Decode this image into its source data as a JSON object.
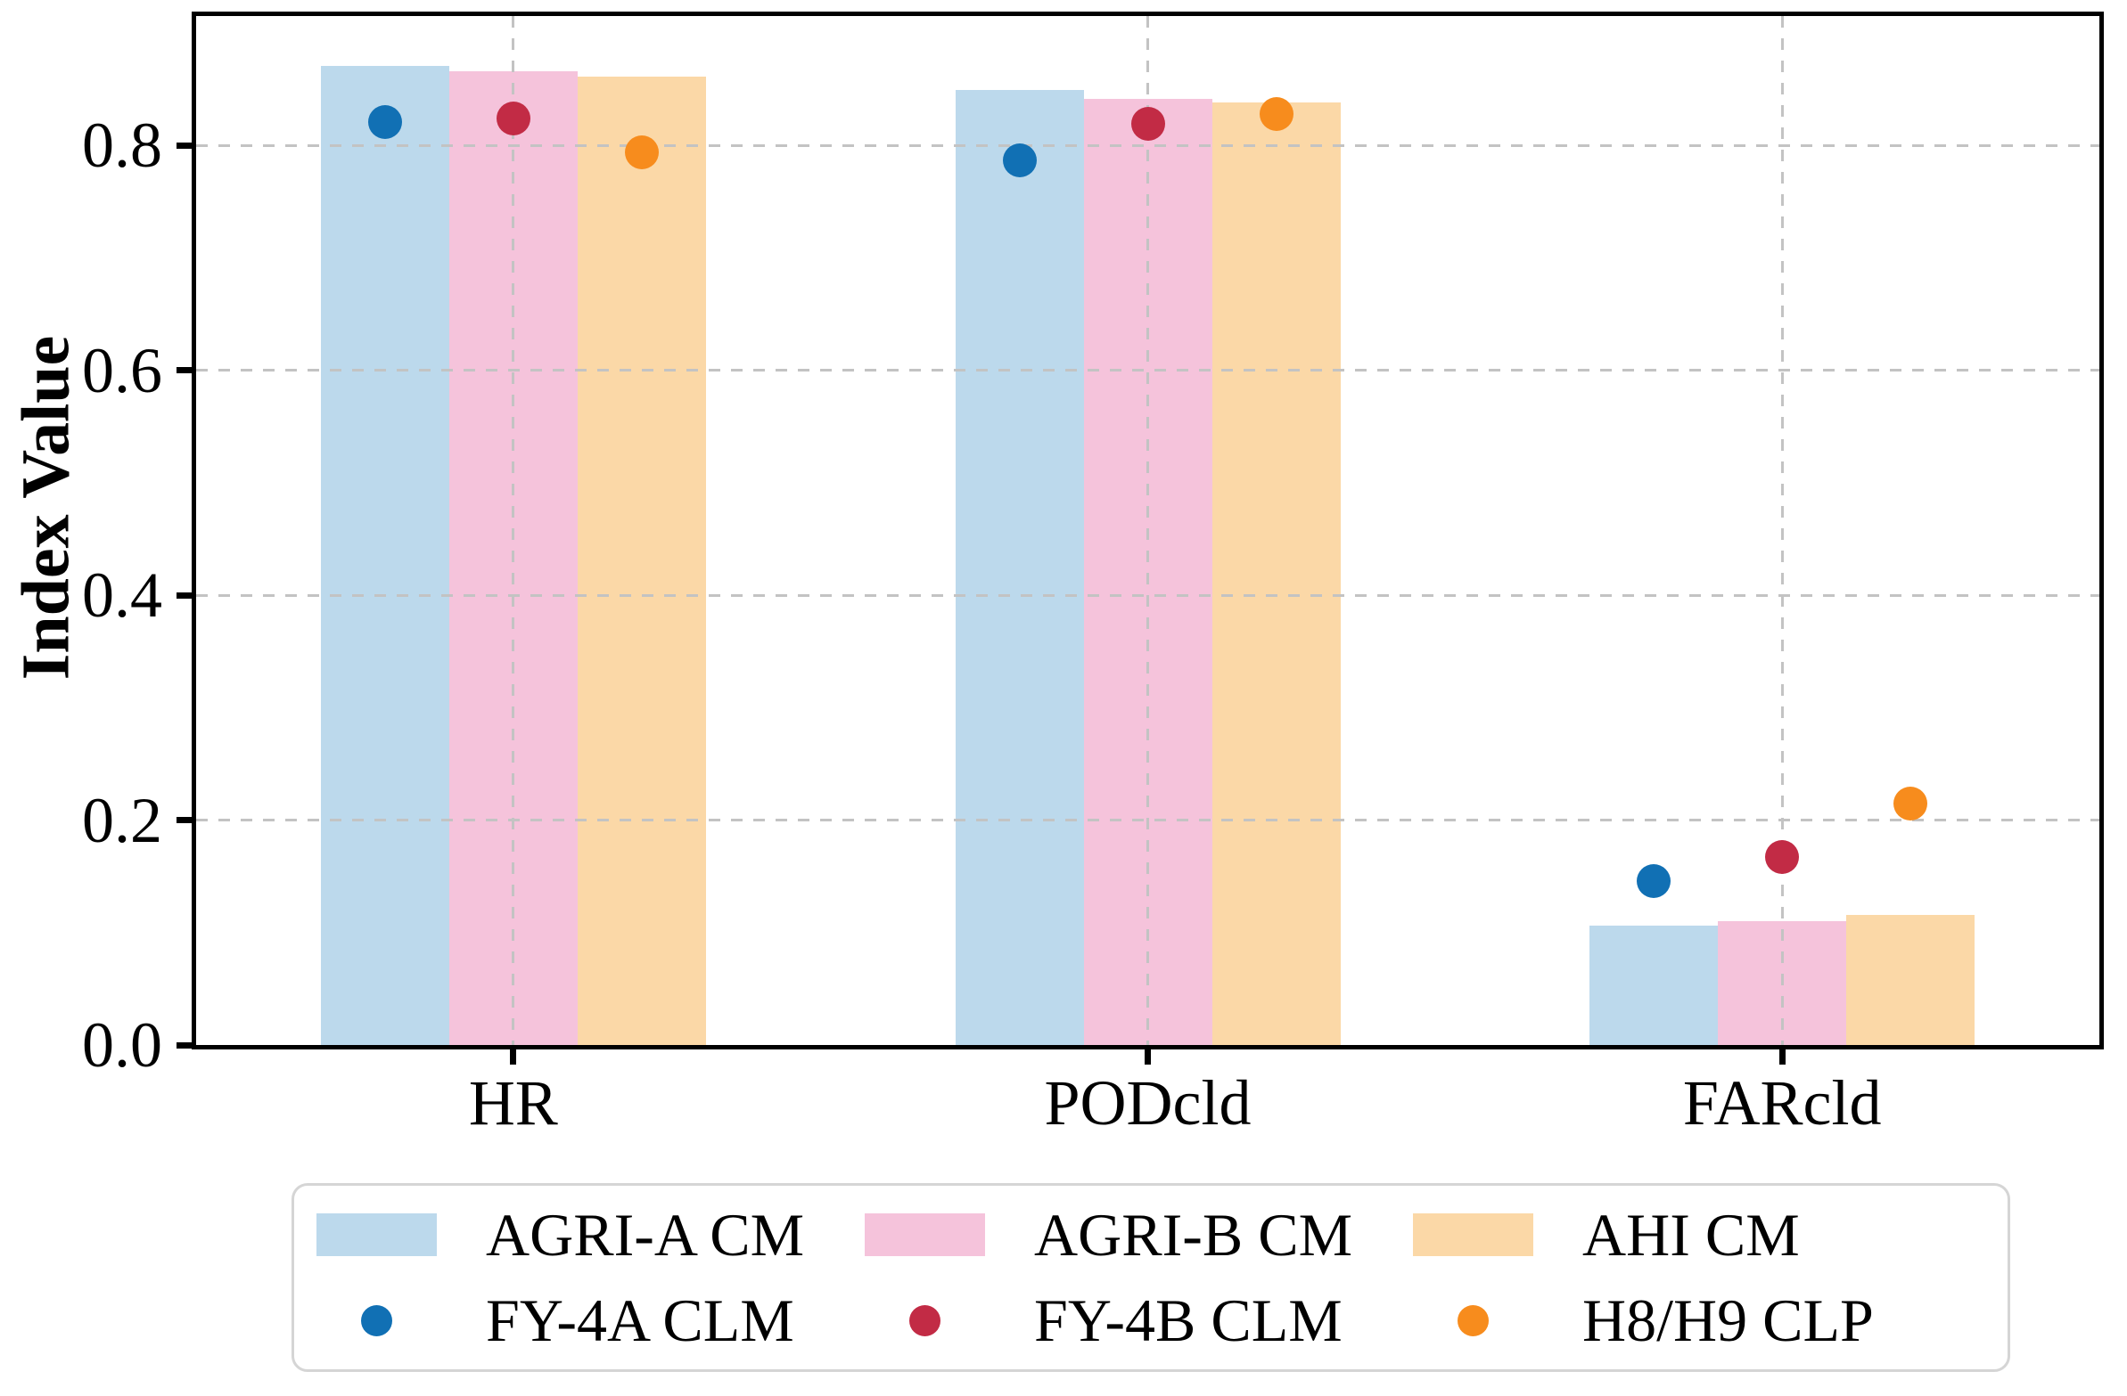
{
  "chart_data": {
    "type": "bar",
    "subtype": "grouped-bars-with-scatter-points",
    "title": "",
    "xlabel": "",
    "ylabel": "Index Value",
    "categories": [
      "HR",
      "PODcld",
      "FARcld"
    ],
    "series": [
      {
        "name": "AGRI-A CM",
        "kind": "bar",
        "color": "#BCD9EC",
        "values": [
          0.871,
          0.849,
          0.106
        ]
      },
      {
        "name": "AGRI-B CM",
        "kind": "bar",
        "color": "#F5C3DB",
        "values": [
          0.866,
          0.841,
          0.11
        ]
      },
      {
        "name": "AHI CM",
        "kind": "bar",
        "color": "#FBD8A7",
        "values": [
          0.861,
          0.838,
          0.116
        ]
      },
      {
        "name": "FY-4A CLM",
        "kind": "point",
        "color": "#1170B4",
        "values": [
          0.821,
          0.787,
          0.146
        ]
      },
      {
        "name": "FY-4B CLM",
        "kind": "point",
        "color": "#C22B45",
        "values": [
          0.824,
          0.819,
          0.167
        ]
      },
      {
        "name": "H8/H9 CLP",
        "kind": "point",
        "color": "#F78C1D",
        "values": [
          0.794,
          0.828,
          0.215
        ]
      }
    ],
    "ylim": [
      0,
      0.915
    ],
    "yticks": [
      "0.0",
      "0.2",
      "0.4",
      "0.6",
      "0.8"
    ],
    "grid": true,
    "grid_style": "dashed",
    "grid_color": "#c3c3c3",
    "frame_color": "#000000",
    "legend_position": "bottom",
    "legend_border_color": "#d5d5d5"
  }
}
